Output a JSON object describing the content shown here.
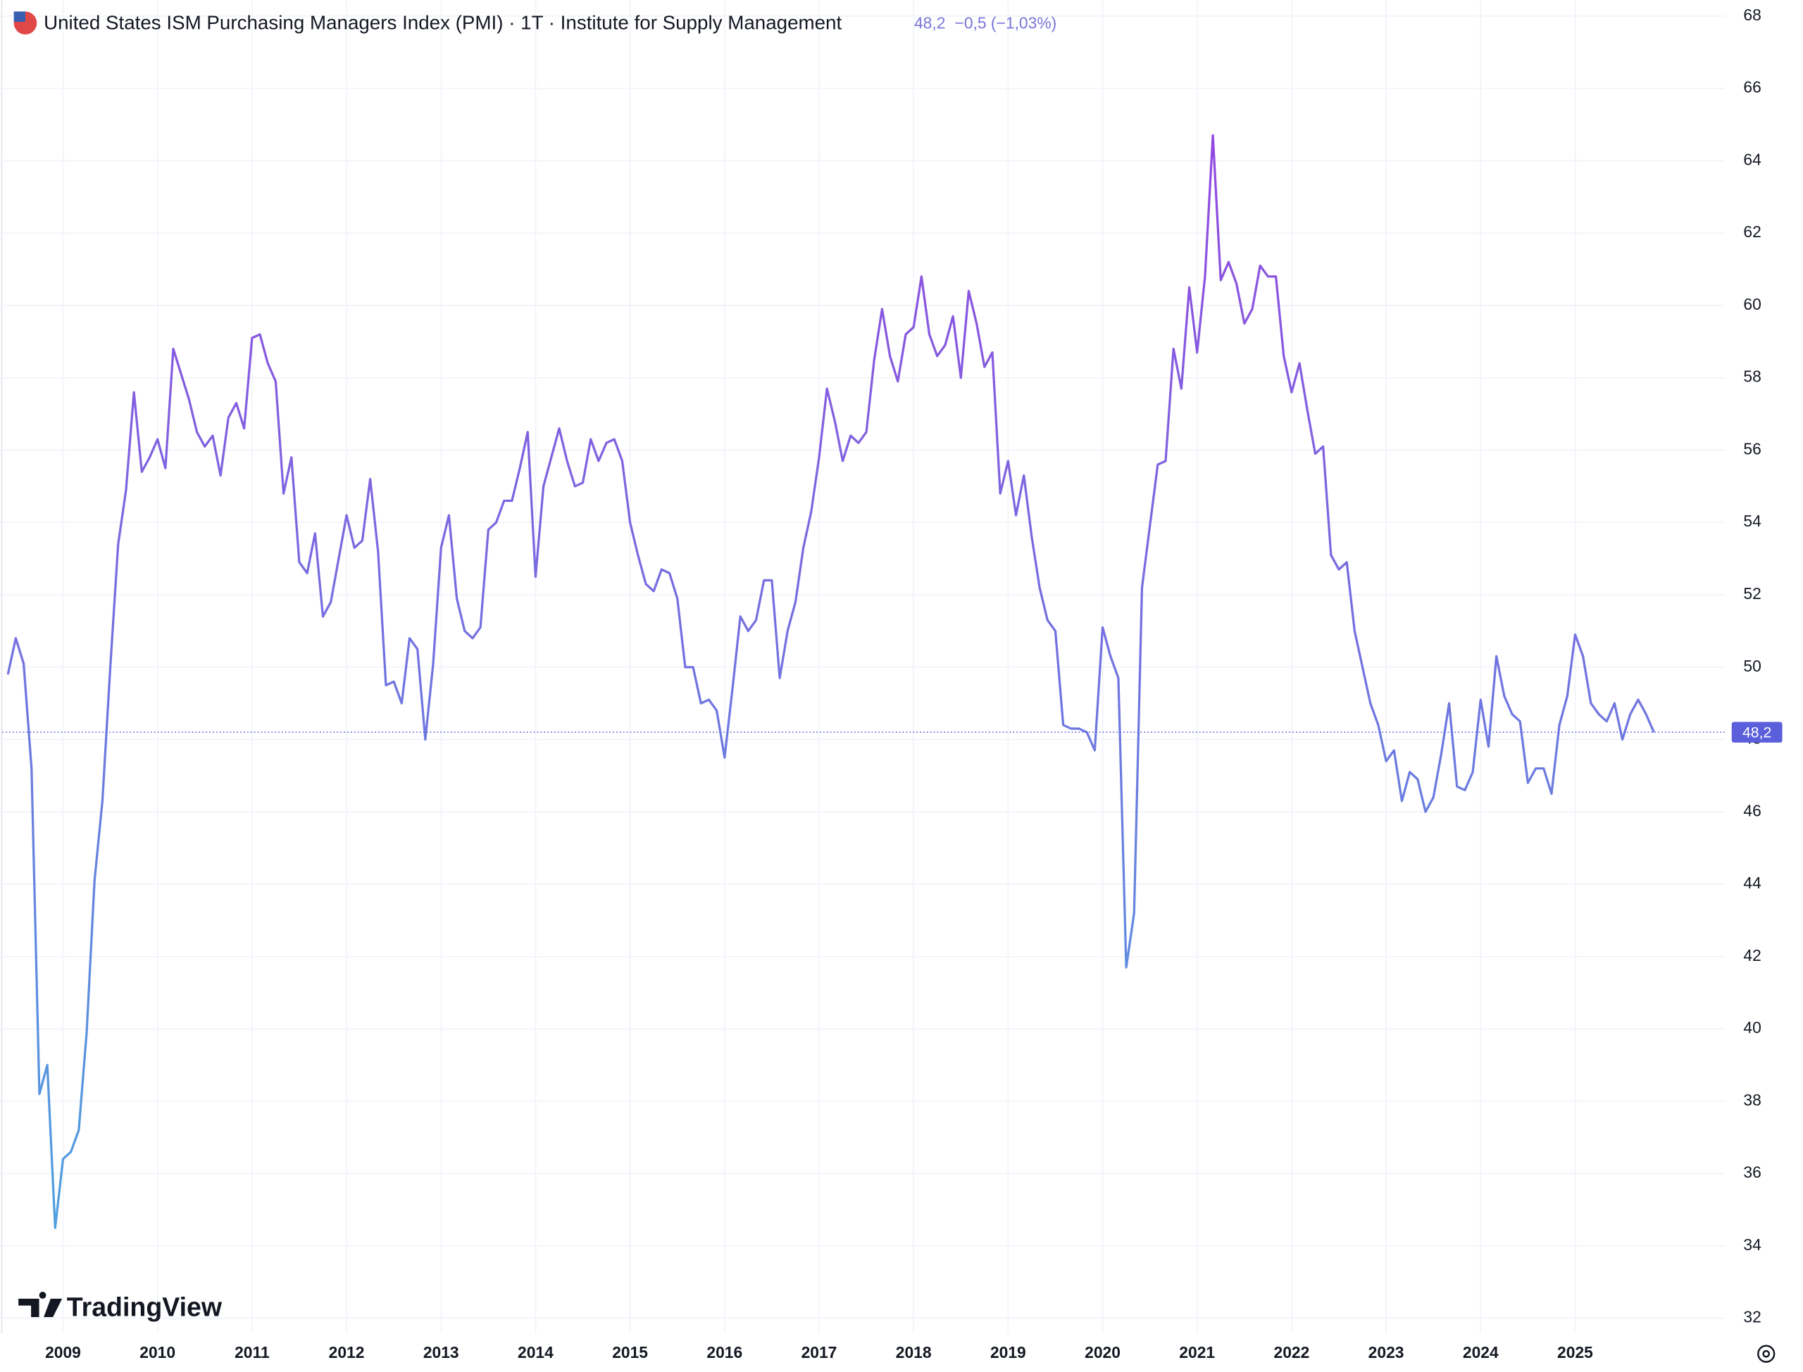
{
  "chart_data": {
    "type": "line",
    "title": "United States ISM Purchasing Managers Index (PMI) · 1T · Institute for Supply Management",
    "last_value_label": "48,2",
    "change_label": "−0,5 (−1,03%)",
    "brand": "TradingView",
    "x": [
      "2008-06",
      "2008-07",
      "2008-08",
      "2008-09",
      "2008-10",
      "2008-11",
      "2008-12",
      "2009-01",
      "2009-02",
      "2009-03",
      "2009-04",
      "2009-05",
      "2009-06",
      "2009-07",
      "2009-08",
      "2009-09",
      "2009-10",
      "2009-11",
      "2009-12",
      "2010-01",
      "2010-02",
      "2010-03",
      "2010-04",
      "2010-05",
      "2010-06",
      "2010-07",
      "2010-08",
      "2010-09",
      "2010-10",
      "2010-11",
      "2010-12",
      "2011-01",
      "2011-02",
      "2011-03",
      "2011-04",
      "2011-05",
      "2011-06",
      "2011-07",
      "2011-08",
      "2011-09",
      "2011-10",
      "2011-11",
      "2011-12",
      "2012-01",
      "2012-02",
      "2012-03",
      "2012-04",
      "2012-05",
      "2012-06",
      "2012-07",
      "2012-08",
      "2012-09",
      "2012-10",
      "2012-11",
      "2012-12",
      "2013-01",
      "2013-02",
      "2013-03",
      "2013-04",
      "2013-05",
      "2013-06",
      "2013-07",
      "2013-08",
      "2013-09",
      "2013-10",
      "2013-11",
      "2013-12",
      "2014-01",
      "2014-02",
      "2014-03",
      "2014-04",
      "2014-05",
      "2014-06",
      "2014-07",
      "2014-08",
      "2014-09",
      "2014-10",
      "2014-11",
      "2014-12",
      "2015-01",
      "2015-02",
      "2015-03",
      "2015-04",
      "2015-05",
      "2015-06",
      "2015-07",
      "2015-08",
      "2015-09",
      "2015-10",
      "2015-11",
      "2015-12",
      "2016-01",
      "2016-02",
      "2016-03",
      "2016-04",
      "2016-05",
      "2016-06",
      "2016-07",
      "2016-08",
      "2016-09",
      "2016-10",
      "2016-11",
      "2016-12",
      "2017-01",
      "2017-02",
      "2017-03",
      "2017-04",
      "2017-05",
      "2017-06",
      "2017-07",
      "2017-08",
      "2017-09",
      "2017-10",
      "2017-11",
      "2017-12",
      "2018-01",
      "2018-02",
      "2018-03",
      "2018-04",
      "2018-05",
      "2018-06",
      "2018-07",
      "2018-08",
      "2018-09",
      "2018-10",
      "2018-11",
      "2018-12",
      "2019-01",
      "2019-02",
      "2019-03",
      "2019-04",
      "2019-05",
      "2019-06",
      "2019-07",
      "2019-08",
      "2019-09",
      "2019-10",
      "2019-11",
      "2019-12",
      "2020-01",
      "2020-02",
      "2020-03",
      "2020-04",
      "2020-05",
      "2020-06",
      "2020-07",
      "2020-08",
      "2020-09",
      "2020-10",
      "2020-11",
      "2020-12",
      "2021-01",
      "2021-02",
      "2021-03",
      "2021-04",
      "2021-05",
      "2021-06",
      "2021-07",
      "2021-08",
      "2021-09",
      "2021-10",
      "2021-11",
      "2021-12",
      "2022-01",
      "2022-02",
      "2022-03",
      "2022-04",
      "2022-05",
      "2022-06",
      "2022-07",
      "2022-08",
      "2022-09",
      "2022-10",
      "2022-11",
      "2022-12",
      "2023-01",
      "2023-02",
      "2023-03",
      "2023-04",
      "2023-05",
      "2023-06",
      "2023-07",
      "2023-08",
      "2023-09",
      "2023-10",
      "2023-11",
      "2023-12",
      "2024-01",
      "2024-02",
      "2024-03",
      "2024-04",
      "2024-05",
      "2024-06",
      "2024-07",
      "2024-08",
      "2024-09",
      "2024-10",
      "2024-11",
      "2024-12",
      "2025-01",
      "2025-02",
      "2025-03",
      "2025-04",
      "2025-05",
      "2025-06",
      "2025-07",
      "2025-08",
      "2025-09",
      "2025-10",
      "2025-11"
    ],
    "series": [
      {
        "name": "United States ISM Purchasing Managers Index (PMI)",
        "color_top": "#9b3fe0",
        "color_bottom": "#4aa8df",
        "values": [
          49.8,
          50.8,
          50.1,
          47.2,
          38.2,
          39.0,
          34.5,
          36.4,
          36.6,
          37.2,
          39.9,
          44.1,
          46.3,
          50.0,
          53.4,
          54.9,
          57.6,
          55.4,
          55.8,
          56.3,
          55.5,
          58.8,
          58.1,
          57.4,
          56.5,
          56.1,
          56.4,
          55.3,
          56.9,
          57.3,
          56.6,
          59.1,
          59.2,
          58.4,
          57.9,
          54.8,
          55.8,
          52.9,
          52.6,
          53.7,
          51.4,
          51.8,
          53.0,
          54.2,
          53.3,
          53.5,
          55.2,
          53.2,
          49.5,
          49.6,
          49.0,
          50.8,
          50.5,
          48.0,
          50.1,
          53.3,
          54.2,
          51.9,
          51.0,
          50.8,
          51.1,
          53.8,
          54.0,
          54.6,
          54.6,
          55.5,
          56.5,
          52.5,
          55.0,
          55.8,
          56.6,
          55.7,
          55.0,
          55.1,
          56.3,
          55.7,
          56.2,
          56.3,
          55.7,
          54.0,
          53.1,
          52.3,
          52.1,
          52.7,
          52.6,
          51.9,
          50.0,
          50.0,
          49.0,
          49.1,
          48.8,
          47.5,
          49.4,
          51.4,
          51.0,
          51.3,
          52.4,
          52.4,
          49.7,
          51.0,
          51.8,
          53.3,
          54.3,
          55.8,
          57.7,
          56.8,
          55.7,
          56.4,
          56.2,
          56.5,
          58.5,
          59.9,
          58.6,
          57.9,
          59.2,
          59.4,
          60.8,
          59.2,
          58.6,
          58.9,
          59.7,
          58.0,
          60.4,
          59.5,
          58.3,
          58.7,
          54.8,
          55.7,
          54.2,
          55.3,
          53.6,
          52.2,
          51.3,
          51.0,
          48.4,
          48.3,
          48.3,
          48.2,
          47.7,
          51.1,
          50.3,
          49.7,
          41.7,
          43.2,
          52.2,
          53.9,
          55.6,
          55.7,
          58.8,
          57.7,
          60.5,
          58.7,
          60.8,
          64.7,
          60.7,
          61.2,
          60.6,
          59.5,
          59.9,
          61.1,
          60.8,
          60.8,
          58.6,
          57.6,
          58.4,
          57.1,
          55.9,
          56.1,
          53.1,
          52.7,
          52.9,
          51.0,
          50.0,
          49.0,
          48.4,
          47.4,
          47.7,
          46.3,
          47.1,
          46.9,
          46.0,
          46.4,
          47.6,
          49.0,
          46.7,
          46.6,
          47.1,
          49.1,
          47.8,
          50.3,
          49.2,
          48.7,
          48.5,
          46.8,
          47.2,
          47.2,
          46.5,
          48.4,
          49.2,
          50.9,
          50.3,
          49.0,
          48.7,
          48.5,
          49.0,
          48.0,
          48.7,
          49.1,
          48.7,
          48.2
        ]
      }
    ],
    "xlim": [
      "2008-05",
      "2026-08"
    ],
    "xticks": [
      {
        "value": "2009-01",
        "label": "2009"
      },
      {
        "value": "2010-01",
        "label": "2010"
      },
      {
        "value": "2011-01",
        "label": "2011"
      },
      {
        "value": "2012-01",
        "label": "2012"
      },
      {
        "value": "2013-01",
        "label": "2013"
      },
      {
        "value": "2014-01",
        "label": "2014"
      },
      {
        "value": "2015-01",
        "label": "2015"
      },
      {
        "value": "2016-01",
        "label": "2016"
      },
      {
        "value": "2017-01",
        "label": "2017"
      },
      {
        "value": "2018-01",
        "label": "2018"
      },
      {
        "value": "2019-01",
        "label": "2019"
      },
      {
        "value": "2020-01",
        "label": "2020"
      },
      {
        "value": "2021-01",
        "label": "2021"
      },
      {
        "value": "2022-01",
        "label": "2022"
      },
      {
        "value": "2023-01",
        "label": "2023"
      },
      {
        "value": "2024-01",
        "label": "2024"
      },
      {
        "value": "2025-01",
        "label": "2025"
      }
    ],
    "ylim": [
      32,
      68
    ],
    "yticks": [
      32,
      34,
      36,
      38,
      40,
      42,
      44,
      46,
      48,
      50,
      52,
      54,
      56,
      58,
      60,
      62,
      64,
      66,
      68
    ],
    "grid": true,
    "y_axis_side": "right",
    "last_value_color": "#5b5fdb"
  }
}
